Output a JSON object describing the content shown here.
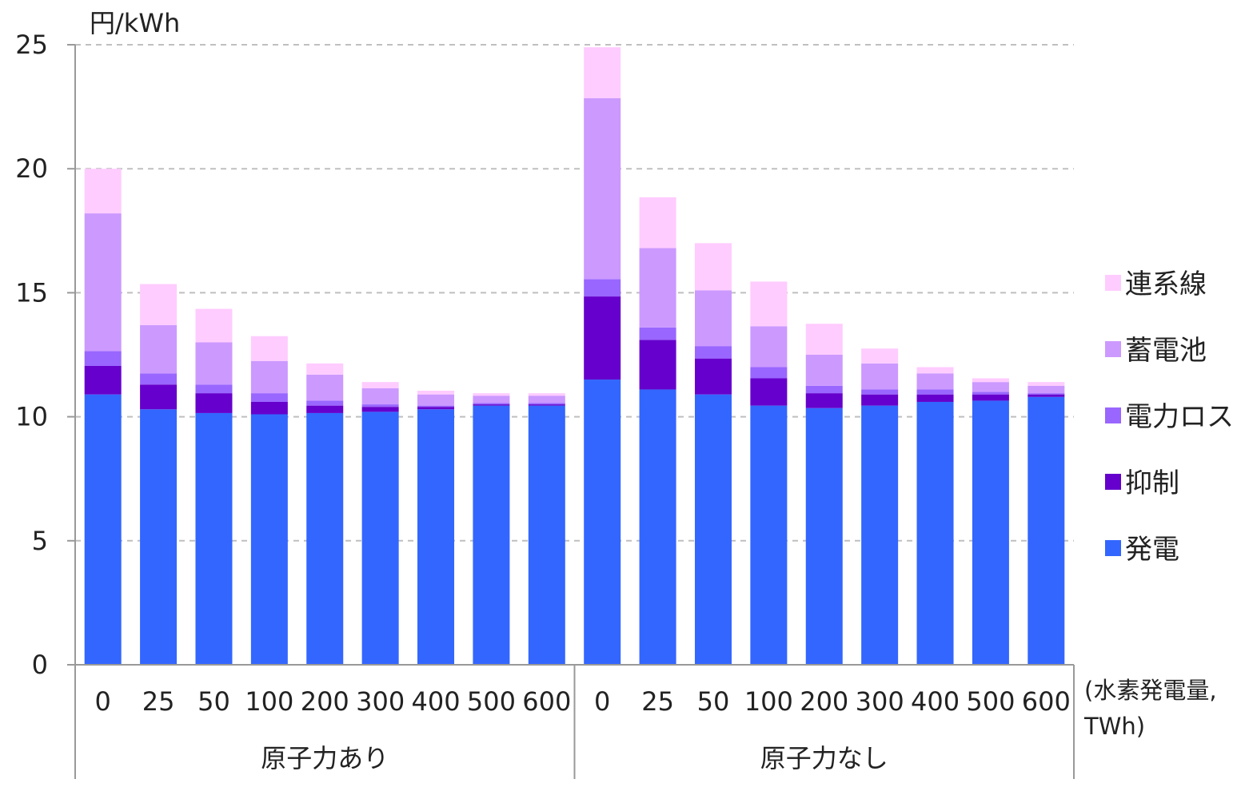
{
  "chart_data": {
    "type": "bar",
    "stacked": true,
    "unit_label": "円/kWh",
    "x_axis_title": [
      "(水素発電量,",
      "TWh)"
    ],
    "ylim": [
      0,
      25
    ],
    "y_ticks": [
      "0",
      "5",
      "10",
      "15",
      "20",
      "25"
    ],
    "grid": "horizontal dashed",
    "legend_position": "right",
    "groups": [
      {
        "label": "原子力あり",
        "categories": [
          "0",
          "25",
          "50",
          "100",
          "200",
          "300",
          "400",
          "500",
          "600"
        ],
        "series": [
          {
            "name": "発電",
            "values": [
              10.9,
              10.3,
              10.15,
              10.1,
              10.15,
              10.2,
              10.3,
              10.45,
              10.45
            ]
          },
          {
            "name": "抑制",
            "values": [
              1.15,
              1.0,
              0.8,
              0.5,
              0.3,
              0.2,
              0.1,
              0.05,
              0.05
            ]
          },
          {
            "name": "電力ロス",
            "values": [
              0.6,
              0.45,
              0.35,
              0.35,
              0.2,
              0.1,
              0.05,
              0.05,
              0.05
            ]
          },
          {
            "name": "蓄電池",
            "values": [
              5.55,
              1.95,
              1.7,
              1.3,
              1.05,
              0.65,
              0.45,
              0.3,
              0.3
            ]
          },
          {
            "name": "連系線",
            "values": [
              1.8,
              1.65,
              1.35,
              1.0,
              0.45,
              0.25,
              0.15,
              0.1,
              0.1
            ]
          }
        ]
      },
      {
        "label": "原子力なし",
        "categories": [
          "0",
          "25",
          "50",
          "100",
          "200",
          "300",
          "400",
          "500",
          "600"
        ],
        "series": [
          {
            "name": "発電",
            "values": [
              11.5,
              11.1,
              10.9,
              10.45,
              10.35,
              10.45,
              10.6,
              10.65,
              10.8
            ]
          },
          {
            "name": "抑制",
            "values": [
              3.35,
              2.0,
              1.45,
              1.1,
              0.6,
              0.45,
              0.3,
              0.25,
              0.1
            ]
          },
          {
            "name": "電力ロス",
            "values": [
              0.7,
              0.5,
              0.5,
              0.45,
              0.3,
              0.2,
              0.2,
              0.1,
              0.05
            ]
          },
          {
            "name": "蓄電池",
            "values": [
              7.3,
              3.2,
              2.25,
              1.65,
              1.25,
              1.05,
              0.65,
              0.4,
              0.3
            ]
          },
          {
            "name": "連系線",
            "values": [
              2.05,
              2.05,
              1.9,
              1.8,
              1.25,
              0.6,
              0.25,
              0.15,
              0.15
            ]
          }
        ]
      }
    ],
    "legend": [
      {
        "name": "連系線",
        "color": "#FFCCFF"
      },
      {
        "name": "蓄電池",
        "color": "#CC99FF"
      },
      {
        "name": "電力ロス",
        "color": "#9966FF"
      },
      {
        "name": "抑制",
        "color": "#6600CC"
      },
      {
        "name": "発電",
        "color": "#3366FF"
      }
    ]
  }
}
